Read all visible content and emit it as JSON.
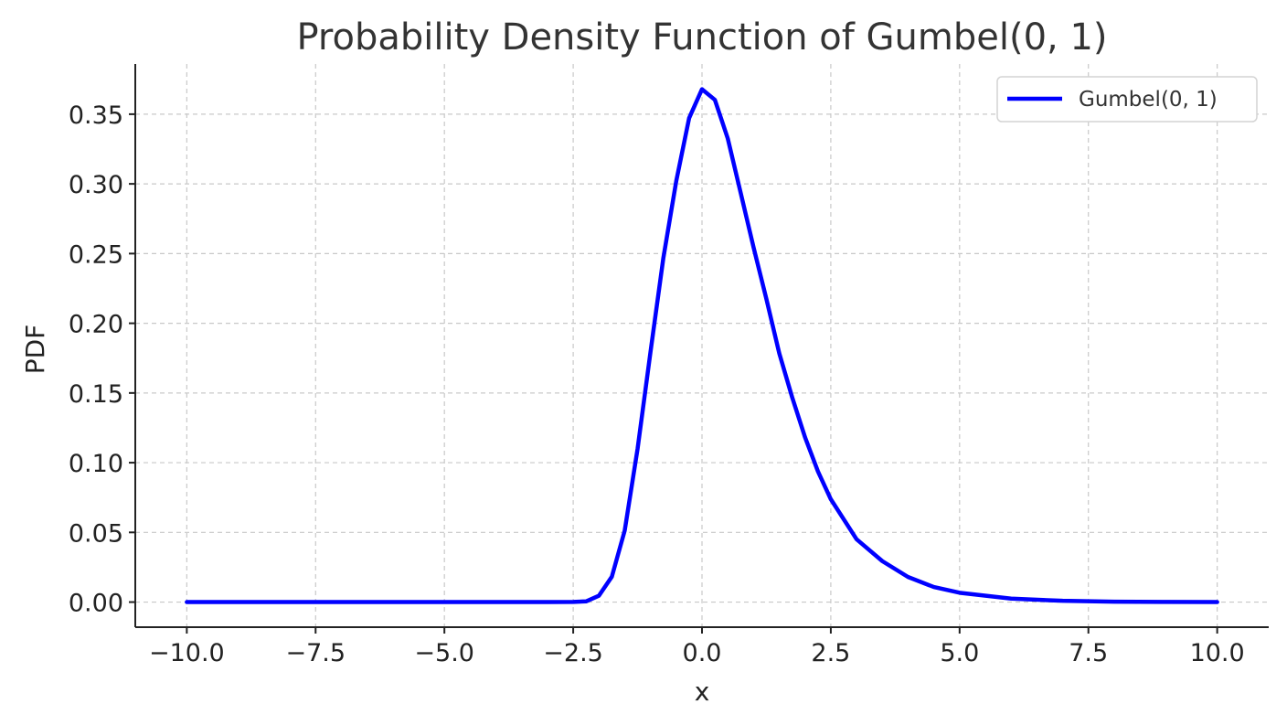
{
  "chart_data": {
    "type": "line",
    "title": "Probability Density Function of Gumbel(0, 1)",
    "xlabel": "x",
    "ylabel": "PDF",
    "xlim": [
      -11,
      11
    ],
    "ylim": [
      -0.018,
      0.386
    ],
    "x_ticks": [
      -10.0,
      -7.5,
      -5.0,
      -2.5,
      0.0,
      2.5,
      5.0,
      7.5,
      10.0
    ],
    "x_tick_labels": [
      "−10.0",
      "−7.5",
      "−5.0",
      "−2.5",
      "0.0",
      "2.5",
      "5.0",
      "7.5",
      "10.0"
    ],
    "y_ticks": [
      0.0,
      0.05,
      0.1,
      0.15,
      0.2,
      0.25,
      0.3,
      0.35
    ],
    "y_tick_labels": [
      "0.00",
      "0.05",
      "0.10",
      "0.15",
      "0.20",
      "0.25",
      "0.30",
      "0.35"
    ],
    "grid": true,
    "legend_position": "top-right",
    "series": [
      {
        "name": "Gumbel(0, 1)",
        "color": "#0000ff",
        "x": [
          -10,
          -7.5,
          -5,
          -3,
          -2.5,
          -2.25,
          -2,
          -1.75,
          -1.5,
          -1.25,
          -1,
          -0.75,
          -0.5,
          -0.25,
          0,
          0.25,
          0.5,
          0.75,
          1,
          1.25,
          1.5,
          1.75,
          2,
          2.25,
          2.5,
          3,
          3.5,
          4,
          4.5,
          5,
          6,
          7,
          7.5,
          8,
          9,
          10
        ],
        "y": [
          0,
          0,
          0,
          0,
          0.0001,
          0.0005,
          0.0046,
          0.0182,
          0.0513,
          0.1101,
          0.1794,
          0.2469,
          0.302,
          0.3472,
          0.3679,
          0.3603,
          0.3326,
          0.2937,
          0.2546,
          0.2174,
          0.1784,
          0.1469,
          0.1182,
          0.0938,
          0.0738,
          0.0451,
          0.0294,
          0.018,
          0.0108,
          0.0067,
          0.0025,
          0.0009,
          0.0006,
          0.0003,
          0.0001,
          0
        ]
      }
    ]
  }
}
